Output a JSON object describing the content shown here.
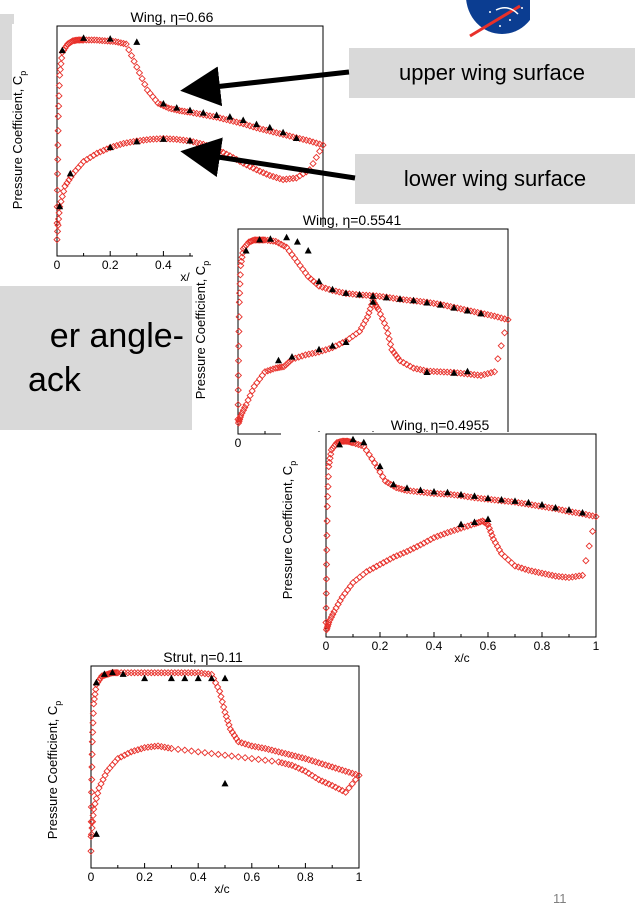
{
  "slide_number": "11",
  "callouts": {
    "upper": "upper wing surface",
    "lower": "lower wing surface",
    "aoa_line1": "er angle-",
    "aoa_line2": "ack"
  },
  "colors": {
    "cfd": "#e8302a",
    "exp": "#000000",
    "callout_bg": "#d9d9d9",
    "logo": "#0b3d91"
  },
  "icons": {
    "logo": "nasa-logo-icon"
  },
  "chart_data": [
    {
      "type": "scatter",
      "title": "Wing, η=0.66",
      "ylabel": "Pressure Coefficient, C",
      "ylabel_sub": "p",
      "xlabel": "x/",
      "xlim": [
        0,
        1
      ],
      "ylim": [
        -1.6,
        1.2
      ],
      "xticks": [
        "0",
        "0.2",
        "0.4"
      ],
      "series": [
        {
          "marker": "open-diamond",
          "color": "#e8302a",
          "role": "cfd",
          "x": [
            0,
            0.002,
            0.005,
            0.01,
            0.02,
            0.04,
            0.06,
            0.08,
            0.1,
            0.14,
            0.18,
            0.22,
            0.26,
            0.3,
            0.34,
            0.38,
            0.42,
            0.46,
            0.5,
            0.55,
            0.6,
            0.65,
            0.7,
            0.75,
            0.8,
            0.85,
            0.9,
            0.95,
            1,
            0.95,
            0.9,
            0.85,
            0.8,
            0.75,
            0.7,
            0.65,
            0.6,
            0.55,
            0.5,
            0.45,
            0.4,
            0.35,
            0.3,
            0.25,
            0.2,
            0.15,
            0.1,
            0.06,
            0.03,
            0.01,
            0.002
          ],
          "y": [
            1,
            0.2,
            -0.5,
            -1.0,
            -1.28,
            -1.38,
            -1.42,
            -1.43,
            -1.43,
            -1.43,
            -1.42,
            -1.41,
            -1.38,
            -1.1,
            -0.82,
            -0.66,
            -0.6,
            -0.57,
            -0.55,
            -0.52,
            -0.49,
            -0.45,
            -0.41,
            -0.36,
            -0.32,
            -0.28,
            -0.24,
            -0.2,
            -0.15,
            0.15,
            0.25,
            0.27,
            0.22,
            0.15,
            0.07,
            -0.02,
            -0.1,
            -0.16,
            -0.2,
            -0.22,
            -0.23,
            -0.22,
            -0.2,
            -0.17,
            -0.12,
            -0.05,
            0.05,
            0.2,
            0.35,
            0.6,
            0.9
          ]
        },
        {
          "marker": "filled-triangle",
          "color": "#000000",
          "role": "experiment",
          "x": [
            0.02,
            0.1,
            0.2,
            0.3,
            0.4,
            0.45,
            0.5,
            0.55,
            0.6,
            0.65,
            0.7,
            0.75,
            0.8,
            0.85,
            0.9,
            0.2,
            0.3,
            0.4,
            0.5,
            0.01,
            0.05
          ],
          "y": [
            -1.3,
            -1.45,
            -1.44,
            -1.4,
            -0.65,
            -0.6,
            -0.57,
            -0.54,
            -0.51,
            -0.49,
            -0.45,
            -0.4,
            -0.36,
            -0.3,
            -0.23,
            -0.12,
            -0.19,
            -0.22,
            -0.2,
            0.6,
            0.2
          ]
        }
      ]
    },
    {
      "type": "scatter",
      "title": "Wing, η=0.5541",
      "ylabel": "Pressure Coefficient, C",
      "ylabel_sub": "p",
      "xlabel": "",
      "xlim": [
        0,
        1
      ],
      "ylim": [
        -1.6,
        1.2
      ],
      "xticks": [
        "0"
      ],
      "series": [
        {
          "marker": "open-diamond",
          "color": "#e8302a",
          "role": "cfd",
          "x": [
            0,
            0.002,
            0.005,
            0.01,
            0.02,
            0.04,
            0.06,
            0.08,
            0.1,
            0.14,
            0.18,
            0.22,
            0.26,
            0.3,
            0.35,
            0.4,
            0.45,
            0.5,
            0.55,
            0.6,
            0.65,
            0.7,
            0.75,
            0.8,
            0.85,
            0.9,
            0.95,
            1,
            0.95,
            0.9,
            0.85,
            0.8,
            0.75,
            0.7,
            0.65,
            0.6,
            0.57,
            0.55,
            0.52,
            0.5,
            0.48,
            0.45,
            0.4,
            0.35,
            0.3,
            0.25,
            0.2,
            0.17,
            0.14,
            0.1,
            0.06,
            0.03,
            0.01,
            0.002
          ],
          "y": [
            1,
            0.2,
            -0.6,
            -1.1,
            -1.33,
            -1.42,
            -1.45,
            -1.45,
            -1.45,
            -1.43,
            -1.35,
            -1.15,
            -0.95,
            -0.82,
            -0.76,
            -0.72,
            -0.7,
            -0.69,
            -0.67,
            -0.64,
            -0.62,
            -0.6,
            -0.57,
            -0.53,
            -0.49,
            -0.45,
            -0.41,
            -0.36,
            0.35,
            0.4,
            0.38,
            0.36,
            0.35,
            0.34,
            0.3,
            0.2,
            0.05,
            -0.25,
            -0.5,
            -0.62,
            -0.4,
            -0.2,
            -0.07,
            0.02,
            0.08,
            0.12,
            0.18,
            0.28,
            0.3,
            0.35,
            0.55,
            0.8,
            0.95,
            1.05
          ]
        },
        {
          "marker": "filled-triangle",
          "color": "#000000",
          "role": "experiment",
          "x": [
            0.03,
            0.08,
            0.12,
            0.18,
            0.22,
            0.26,
            0.3,
            0.35,
            0.4,
            0.45,
            0.5,
            0.55,
            0.6,
            0.65,
            0.7,
            0.75,
            0.8,
            0.85,
            0.9,
            0.5,
            0.7,
            0.8,
            0.85,
            0.3,
            0.35,
            0.4,
            0.15,
            0.2
          ],
          "y": [
            -1.3,
            -1.45,
            -1.46,
            -1.48,
            -1.42,
            -1.3,
            -0.88,
            -0.77,
            -0.72,
            -0.7,
            -0.68,
            -0.66,
            -0.64,
            -0.62,
            -0.59,
            -0.56,
            -0.52,
            -0.48,
            -0.44,
            -0.6,
            0.36,
            0.37,
            0.35,
            0.05,
            0.0,
            -0.05,
            0.2,
            0.15
          ]
        }
      ]
    },
    {
      "type": "scatter",
      "title": "Wing, η=0.4955",
      "ylabel": "Pressure Coefficient, C",
      "ylabel_sub": "p",
      "xlabel": "x/c",
      "xlim": [
        0,
        1
      ],
      "ylim": [
        -1.6,
        1.2
      ],
      "xticks": [
        "0",
        "0.2",
        "0.4",
        "0.6",
        "0.8",
        "1"
      ],
      "series": [
        {
          "marker": "open-diamond",
          "color": "#e8302a",
          "role": "cfd",
          "x": [
            0,
            0.002,
            0.005,
            0.01,
            0.02,
            0.04,
            0.06,
            0.08,
            0.1,
            0.14,
            0.18,
            0.22,
            0.26,
            0.3,
            0.35,
            0.4,
            0.45,
            0.5,
            0.55,
            0.6,
            0.65,
            0.7,
            0.75,
            0.8,
            0.85,
            0.9,
            0.95,
            1,
            0.95,
            0.9,
            0.85,
            0.8,
            0.75,
            0.7,
            0.65,
            0.62,
            0.6,
            0.58,
            0.55,
            0.5,
            0.45,
            0.4,
            0.35,
            0.3,
            0.25,
            0.2,
            0.15,
            0.1,
            0.06,
            0.03,
            0.01,
            0.002
          ],
          "y": [
            1,
            0.2,
            -0.6,
            -1.15,
            -1.38,
            -1.48,
            -1.5,
            -1.5,
            -1.48,
            -1.43,
            -1.2,
            -0.95,
            -0.86,
            -0.82,
            -0.8,
            -0.78,
            -0.77,
            -0.75,
            -0.72,
            -0.7,
            -0.68,
            -0.66,
            -0.63,
            -0.6,
            -0.57,
            -0.53,
            -0.5,
            -0.46,
            0.35,
            0.38,
            0.36,
            0.32,
            0.28,
            0.22,
            0.05,
            -0.15,
            -0.35,
            -0.4,
            -0.36,
            -0.3,
            -0.24,
            -0.17,
            -0.07,
            0.02,
            0.1,
            0.2,
            0.3,
            0.45,
            0.65,
            0.85,
            1.0,
            1.1
          ]
        },
        {
          "marker": "filled-triangle",
          "color": "#000000",
          "role": "experiment",
          "x": [
            0.05,
            0.1,
            0.14,
            0.2,
            0.25,
            0.3,
            0.35,
            0.4,
            0.45,
            0.5,
            0.55,
            0.6,
            0.65,
            0.7,
            0.75,
            0.8,
            0.85,
            0.9,
            0.95,
            0.5,
            0.55,
            0.6
          ],
          "y": [
            -1.45,
            -1.52,
            -1.48,
            -1.15,
            -0.9,
            -0.85,
            -0.82,
            -0.8,
            -0.79,
            -0.76,
            -0.74,
            -0.71,
            -0.69,
            -0.67,
            -0.65,
            -0.62,
            -0.58,
            -0.55,
            -0.51,
            -0.35,
            -0.38,
            -0.42
          ]
        }
      ]
    },
    {
      "type": "scatter",
      "title": "Strut, η=0.11",
      "ylabel": "Pressure Coefficient, C",
      "ylabel_sub": "p",
      "xlabel": "x/c",
      "xlim": [
        0,
        1
      ],
      "ylim": [
        -1.2,
        1.2
      ],
      "xticks": [
        "0",
        "0.2",
        "0.4",
        "0.6",
        "0.8",
        "1"
      ],
      "series": [
        {
          "marker": "open-diamond",
          "color": "#e8302a",
          "role": "cfd",
          "x": [
            0,
            0.002,
            0.005,
            0.01,
            0.02,
            0.04,
            0.06,
            0.08,
            0.1,
            0.15,
            0.2,
            0.25,
            0.3,
            0.35,
            0.4,
            0.45,
            0.48,
            0.5,
            0.52,
            0.55,
            0.6,
            0.65,
            0.7,
            0.75,
            0.8,
            0.85,
            0.9,
            0.95,
            1,
            0.95,
            0.9,
            0.85,
            0.8,
            0.75,
            0.7,
            0.6,
            0.5,
            0.4,
            0.3,
            0.25,
            0.2,
            0.15,
            0.1,
            0.06,
            0.03,
            0.01,
            0.002
          ],
          "y": [
            1,
            0.3,
            -0.3,
            -0.75,
            -0.98,
            -1.08,
            -1.1,
            -1.12,
            -1.12,
            -1.12,
            -1.12,
            -1.12,
            -1.12,
            -1.12,
            -1.12,
            -1.1,
            -0.9,
            -0.65,
            -0.45,
            -0.3,
            -0.25,
            -0.22,
            -0.18,
            -0.14,
            -0.1,
            -0.05,
            0.0,
            0.05,
            0.1,
            0.3,
            0.22,
            0.15,
            0.05,
            -0.02,
            -0.06,
            -0.1,
            -0.14,
            -0.18,
            -0.22,
            -0.25,
            -0.23,
            -0.18,
            -0.1,
            0.05,
            0.25,
            0.5,
            0.8
          ]
        },
        {
          "marker": "filled-triangle",
          "color": "#000000",
          "role": "experiment",
          "x": [
            0.02,
            0.05,
            0.08,
            0.12,
            0.2,
            0.3,
            0.35,
            0.4,
            0.45,
            0.5,
            0.5,
            0.02
          ],
          "y": [
            -1.0,
            -1.1,
            -1.12,
            -1.1,
            -1.05,
            -1.05,
            -1.05,
            -1.05,
            -1.05,
            -1.05,
            0.2,
            0.8
          ]
        }
      ]
    }
  ]
}
